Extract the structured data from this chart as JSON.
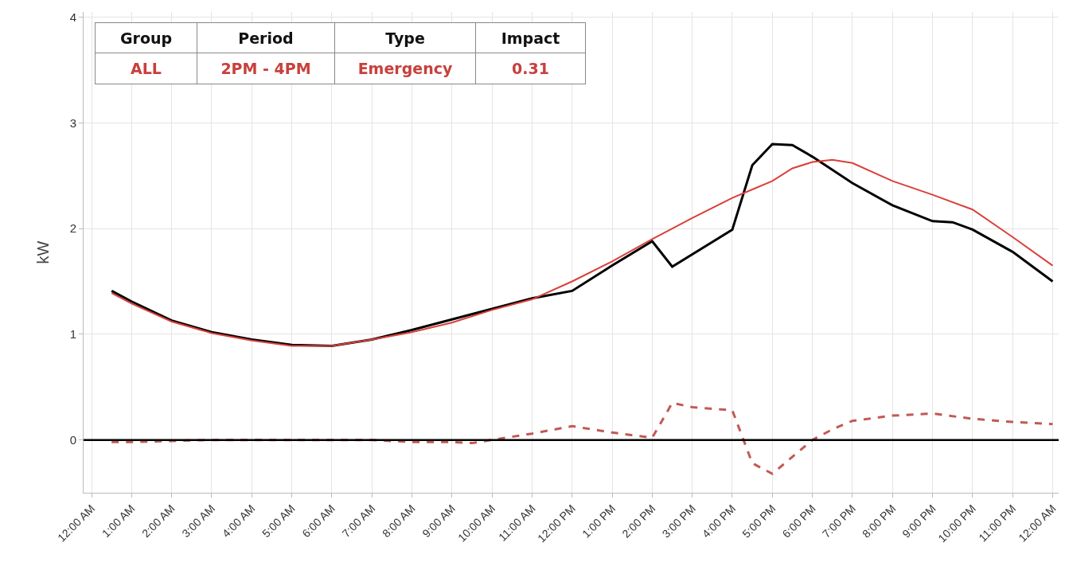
{
  "chart_data": {
    "type": "line",
    "ylabel": "kW",
    "grid": true,
    "marker": "none",
    "xlim": [
      -0.2,
      24.15
    ],
    "ylim": [
      -0.5,
      4.05
    ],
    "yticks": [
      0,
      1,
      2,
      3,
      4
    ],
    "xticks": [
      {
        "value": 0,
        "label": "12:00 AM"
      },
      {
        "value": 1,
        "label": "1:00 AM"
      },
      {
        "value": 2,
        "label": "2:00 AM"
      },
      {
        "value": 3,
        "label": "3:00 AM"
      },
      {
        "value": 4,
        "label": "4:00 AM"
      },
      {
        "value": 5,
        "label": "5:00 AM"
      },
      {
        "value": 6,
        "label": "6:00 AM"
      },
      {
        "value": 7,
        "label": "7:00 AM"
      },
      {
        "value": 8,
        "label": "8:00 AM"
      },
      {
        "value": 9,
        "label": "9:00 AM"
      },
      {
        "value": 10,
        "label": "10:00 AM"
      },
      {
        "value": 11,
        "label": "11:00 AM"
      },
      {
        "value": 12,
        "label": "12:00 PM"
      },
      {
        "value": 13,
        "label": "1:00 PM"
      },
      {
        "value": 14,
        "label": "2:00 PM"
      },
      {
        "value": 15,
        "label": "3:00 PM"
      },
      {
        "value": 16,
        "label": "4:00 PM"
      },
      {
        "value": 17,
        "label": "5:00 PM"
      },
      {
        "value": 18,
        "label": "6:00 PM"
      },
      {
        "value": 19,
        "label": "7:00 PM"
      },
      {
        "value": 20,
        "label": "8:00 PM"
      },
      {
        "value": 21,
        "label": "9:00 PM"
      },
      {
        "value": 22,
        "label": "10:00 PM"
      },
      {
        "value": 23,
        "label": "11:00 PM"
      },
      {
        "value": 24,
        "label": "12:00 AM"
      }
    ],
    "series": [
      {
        "color": "#000000",
        "line_style": "solid",
        "x": [
          0.5,
          1,
          2,
          3,
          4,
          5,
          6,
          7,
          8,
          9,
          10,
          11,
          12,
          13,
          14,
          14.5,
          16,
          16.5,
          17,
          17.5,
          18,
          19,
          20,
          21,
          21.5,
          22,
          23,
          24
        ],
        "values": [
          1.41,
          1.31,
          1.13,
          1.02,
          0.95,
          0.9,
          0.89,
          0.95,
          1.04,
          1.14,
          1.24,
          1.34,
          1.41,
          1.65,
          1.88,
          1.64,
          1.99,
          2.6,
          2.8,
          2.79,
          2.68,
          2.43,
          2.22,
          2.07,
          2.06,
          1.99,
          1.78,
          1.5
        ]
      },
      {
        "color": "#d9403a",
        "line_style": "solid",
        "x": [
          0.5,
          1,
          2,
          3,
          4,
          5,
          6,
          7,
          8,
          9,
          10,
          11,
          12,
          13,
          14,
          15,
          16,
          16.5,
          17,
          17.5,
          18,
          18.5,
          19,
          20,
          21,
          22,
          23,
          24
        ],
        "values": [
          1.39,
          1.29,
          1.12,
          1.01,
          0.94,
          0.89,
          0.89,
          0.95,
          1.02,
          1.11,
          1.23,
          1.33,
          1.5,
          1.69,
          1.9,
          2.1,
          2.29,
          2.37,
          2.45,
          2.57,
          2.63,
          2.65,
          2.62,
          2.45,
          2.32,
          2.18,
          1.92,
          1.65
        ]
      },
      {
        "color": "#c05a55",
        "line_style": "dashed",
        "x": [
          0.5,
          1,
          2,
          3,
          4,
          5,
          6,
          7,
          8,
          9,
          9.5,
          10,
          11,
          12,
          13,
          14,
          14.5,
          15,
          16,
          16.5,
          17,
          17.5,
          18,
          18.5,
          19,
          20,
          21,
          22,
          23,
          24
        ],
        "values": [
          -0.02,
          -0.02,
          -0.01,
          0,
          0,
          0,
          0,
          0,
          -0.02,
          -0.02,
          -0.03,
          0,
          0.06,
          0.13,
          0.07,
          0.02,
          0.35,
          0.31,
          0.28,
          -0.22,
          -0.32,
          -0.16,
          0,
          0.1,
          0.18,
          0.23,
          0.25,
          0.2,
          0.17,
          0.15
        ]
      }
    ],
    "ref_lines": [
      {
        "axis": "y",
        "value": 0,
        "color": "#000000"
      }
    ],
    "annotations": [
      "Group",
      "Period",
      "Type",
      "Impact",
      "ALL",
      "2PM - 4PM",
      "Emergency",
      "0.31"
    ]
  }
}
